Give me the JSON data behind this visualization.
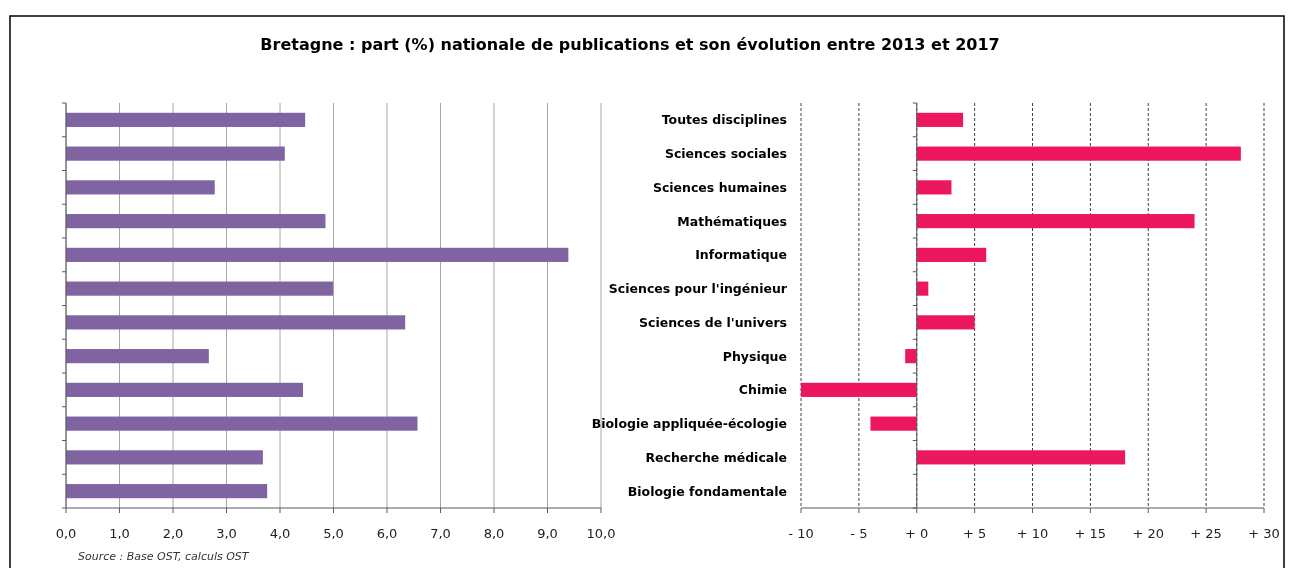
{
  "chart_data": [
    {
      "type": "bar",
      "orientation": "horizontal",
      "title": "Bretagne : part (%) nationale de publications et son évolution entre 2013 et 2017",
      "categories": [
        null,
        null,
        null,
        null,
        null,
        null,
        null,
        null,
        null,
        null,
        null,
        null
      ],
      "values": [
        4.47,
        4.09,
        2.78,
        4.85,
        9.39,
        4.99,
        6.34,
        2.67,
        4.43,
        6.57,
        3.68,
        3.76
      ],
      "color": "#8064a2",
      "xlim": [
        0,
        10
      ],
      "xticks": [
        {
          "value": 0,
          "label": "0,0"
        },
        {
          "value": 1,
          "label": "1,0"
        },
        {
          "value": 2,
          "label": "2,0"
        },
        {
          "value": 3,
          "label": "3,0"
        },
        {
          "value": 4,
          "label": "4,0"
        },
        {
          "value": 5,
          "label": "5,0"
        },
        {
          "value": 6,
          "label": "6,0"
        },
        {
          "value": 7,
          "label": "7,0"
        },
        {
          "value": 8,
          "label": "8,0"
        },
        {
          "value": 9,
          "label": "9,0"
        },
        {
          "value": 10,
          "label": "10,0"
        }
      ],
      "grid": "x",
      "line_style": "solid",
      "tick_labels": "x",
      "annotations": [
        "Source : Base OST, calculs OST"
      ]
    },
    {
      "type": "bar",
      "orientation": "horizontal",
      "categories": [
        "Toutes disciplines",
        "Sciences sociales",
        "Sciences humaines",
        "Mathématiques",
        "Informatique",
        "Sciences pour l'ingénieur",
        "Sciences de l'univers",
        "Physique",
        "Chimie",
        "Biologie appliquée-écologie",
        "Recherche médicale",
        "Biologie fondamentale"
      ],
      "values": [
        4,
        28,
        3,
        24,
        6,
        1,
        5,
        -1,
        -10,
        -4,
        18,
        null
      ],
      "color": "#ed1660",
      "xlim": [
        -10,
        30
      ],
      "xticks": [
        {
          "value": -10,
          "label": "- 10"
        },
        {
          "value": -5,
          "label": "- 5"
        },
        {
          "value": 0,
          "label": "+ 0"
        },
        {
          "value": 5,
          "label": "+ 5"
        },
        {
          "value": 10,
          "label": "+ 10"
        },
        {
          "value": 15,
          "label": "+ 15"
        },
        {
          "value": 20,
          "label": "+ 20"
        },
        {
          "value": 25,
          "label": "+ 25"
        },
        {
          "value": 30,
          "label": "+ 30"
        }
      ],
      "grid": "x",
      "line_style": "dashed"
    }
  ]
}
